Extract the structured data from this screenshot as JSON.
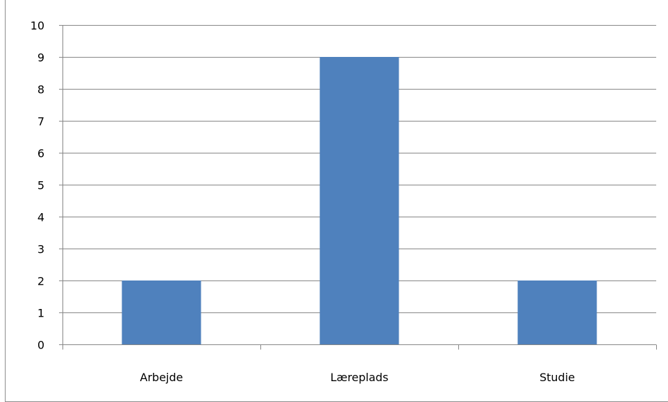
{
  "chart_data": {
    "type": "bar",
    "categories": [
      "Arbejde",
      "Læreplads",
      "Studie"
    ],
    "values": [
      2,
      9,
      2
    ],
    "ylim": [
      0,
      10
    ],
    "yticks": [
      "0",
      "1",
      "2",
      "3",
      "4",
      "5",
      "6",
      "7",
      "8",
      "9",
      "10"
    ],
    "grid": true,
    "legend": "none",
    "bar_color": "#4f81bd",
    "title": "",
    "xlabel": "",
    "ylabel": ""
  }
}
